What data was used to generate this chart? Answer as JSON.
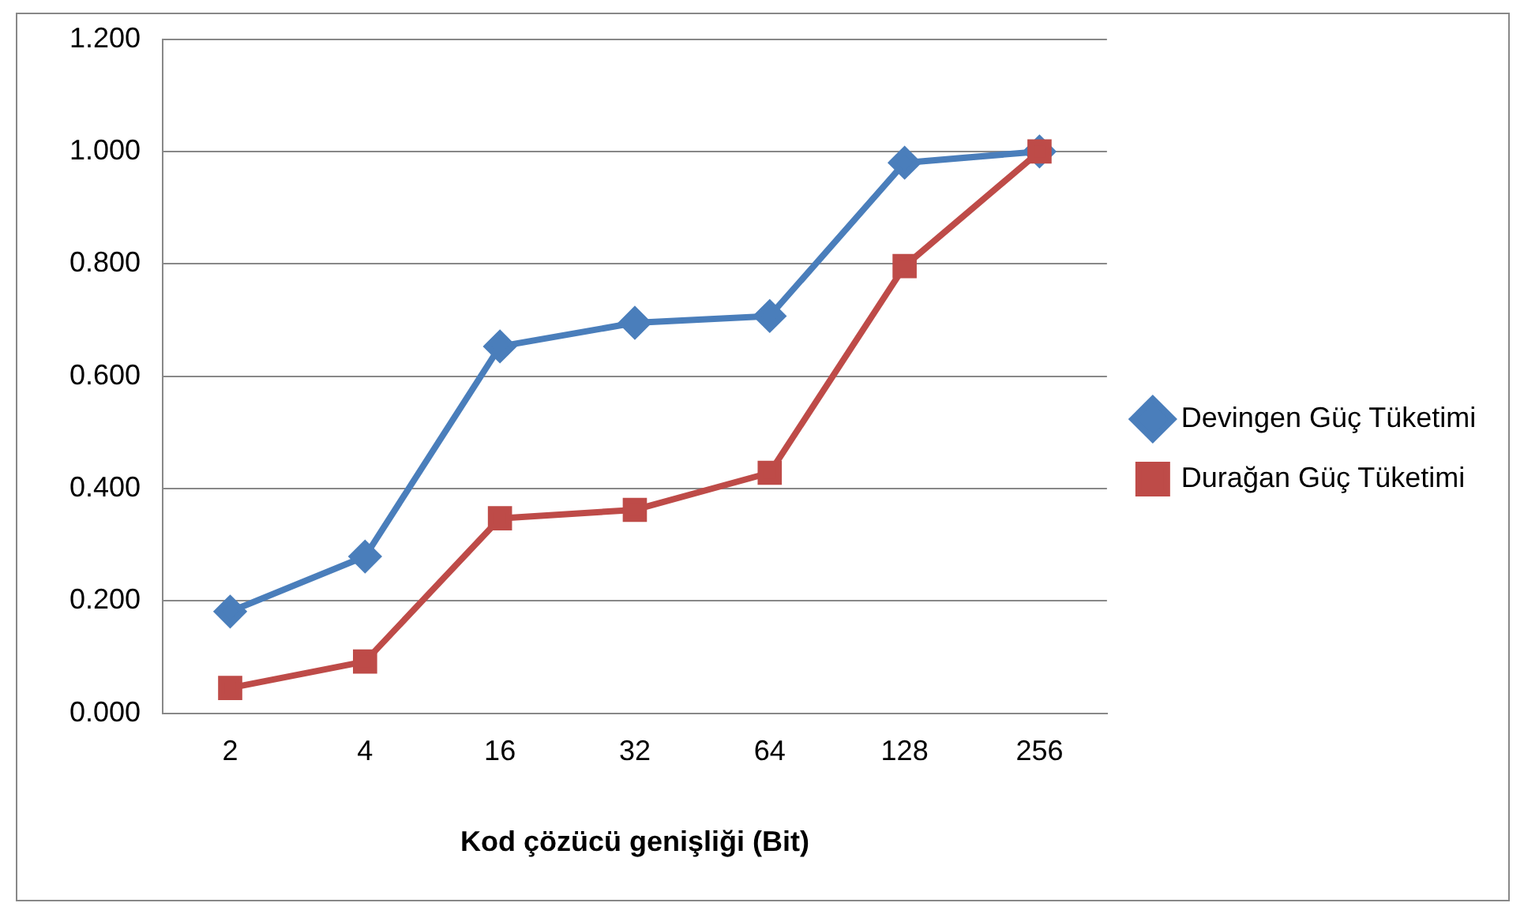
{
  "chart_data": {
    "type": "line",
    "xlabel": "Kod çözücü genişliği (Bit)",
    "categories": [
      "2",
      "4",
      "16",
      "32",
      "64",
      "128",
      "256"
    ],
    "series": [
      {
        "name": "Devingen Güç Tüketimi",
        "color": "#4a7ebb",
        "marker": "diamond",
        "values": [
          0.181,
          0.279,
          0.653,
          0.695,
          0.707,
          0.98,
          1.0
        ]
      },
      {
        "name": "Durağan Güç Tüketimi",
        "color": "#be4b48",
        "marker": "square",
        "values": [
          0.045,
          0.092,
          0.347,
          0.362,
          0.428,
          0.796,
          1.0
        ]
      }
    ],
    "ylim": [
      0,
      1.2
    ],
    "yticks": [
      {
        "value": 0,
        "label": "0.000"
      },
      {
        "value": 0.2,
        "label": "0.200"
      },
      {
        "value": 0.4,
        "label": "0.400"
      },
      {
        "value": 0.6,
        "label": "0.600"
      },
      {
        "value": 0.8,
        "label": "0.800"
      },
      {
        "value": 1.0,
        "label": "1.000"
      },
      {
        "value": 1.2,
        "label": "1.200"
      }
    ],
    "grid": "y",
    "legend": "right",
    "line_style": "solid"
  }
}
